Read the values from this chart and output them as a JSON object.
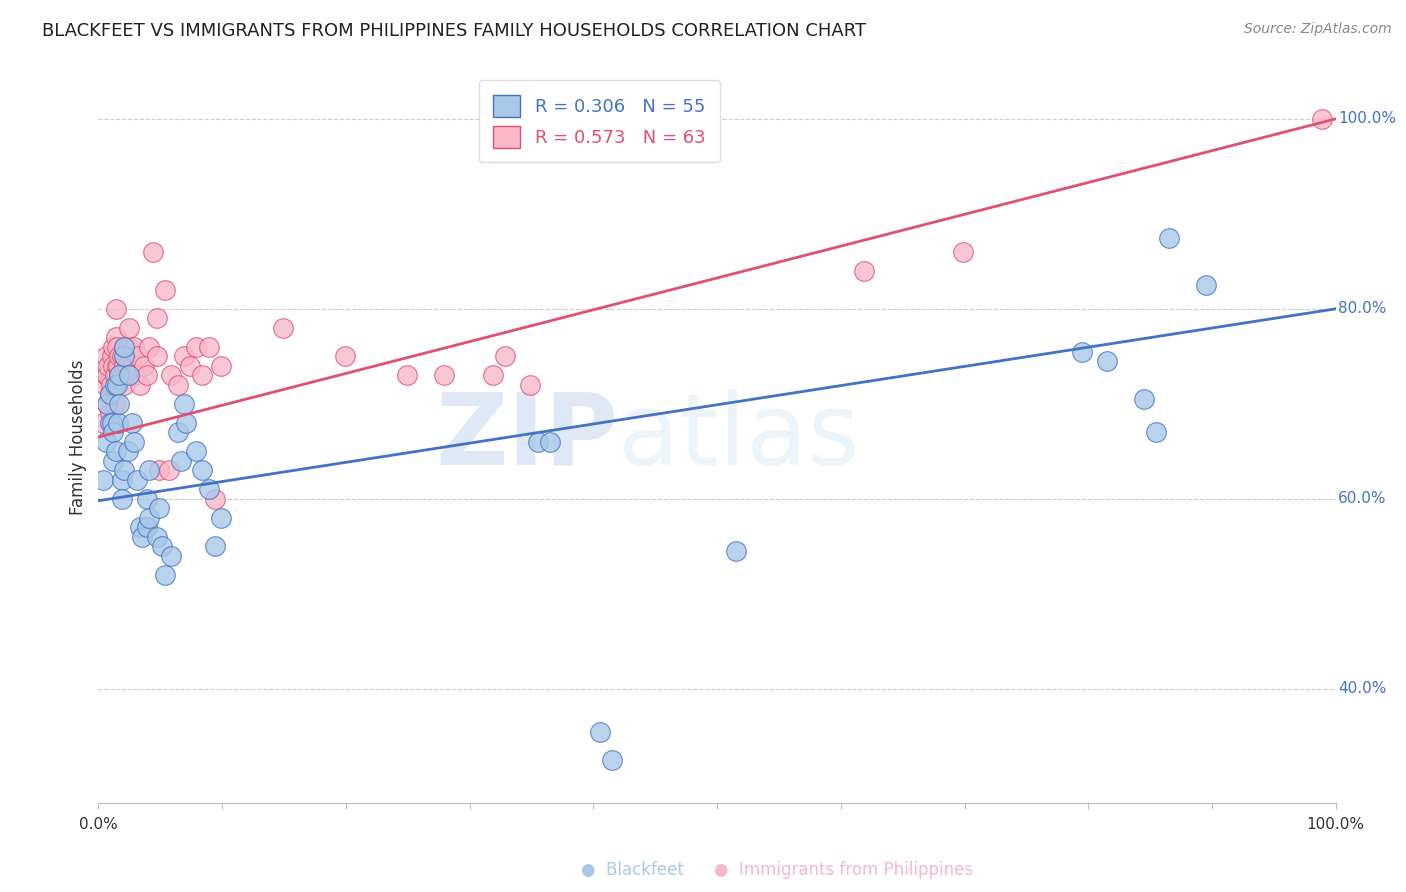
{
  "title": "BLACKFEET VS IMMIGRANTS FROM PHILIPPINES FAMILY HOUSEHOLDS CORRELATION CHART",
  "source": "Source: ZipAtlas.com",
  "ylabel": "Family Households",
  "ytick_labels": [
    "40.0%",
    "60.0%",
    "80.0%",
    "100.0%"
  ],
  "ytick_values": [
    0.4,
    0.6,
    0.8,
    1.0
  ],
  "xlim": [
    0.0,
    1.0
  ],
  "ylim": [
    0.28,
    1.05
  ],
  "blue_color": "#a8c8e8",
  "pink_color": "#f8b8c8",
  "blue_line_color": "#4472c4",
  "pink_line_color": "#e05070",
  "blue_scatter": [
    [
      0.004,
      0.62
    ],
    [
      0.006,
      0.66
    ],
    [
      0.007,
      0.7
    ],
    [
      0.009,
      0.71
    ],
    [
      0.009,
      0.68
    ],
    [
      0.011,
      0.68
    ],
    [
      0.012,
      0.64
    ],
    [
      0.012,
      0.67
    ],
    [
      0.013,
      0.72
    ],
    [
      0.014,
      0.65
    ],
    [
      0.015,
      0.72
    ],
    [
      0.016,
      0.68
    ],
    [
      0.017,
      0.7
    ],
    [
      0.017,
      0.73
    ],
    [
      0.019,
      0.62
    ],
    [
      0.019,
      0.6
    ],
    [
      0.021,
      0.63
    ],
    [
      0.021,
      0.75
    ],
    [
      0.021,
      0.76
    ],
    [
      0.024,
      0.65
    ],
    [
      0.025,
      0.73
    ],
    [
      0.027,
      0.68
    ],
    [
      0.029,
      0.66
    ],
    [
      0.031,
      0.62
    ],
    [
      0.034,
      0.57
    ],
    [
      0.035,
      0.56
    ],
    [
      0.039,
      0.6
    ],
    [
      0.039,
      0.57
    ],
    [
      0.041,
      0.63
    ],
    [
      0.041,
      0.58
    ],
    [
      0.047,
      0.56
    ],
    [
      0.049,
      0.59
    ],
    [
      0.051,
      0.55
    ],
    [
      0.054,
      0.52
    ],
    [
      0.059,
      0.54
    ],
    [
      0.064,
      0.67
    ],
    [
      0.067,
      0.64
    ],
    [
      0.069,
      0.7
    ],
    [
      0.071,
      0.68
    ],
    [
      0.079,
      0.65
    ],
    [
      0.084,
      0.63
    ],
    [
      0.089,
      0.61
    ],
    [
      0.094,
      0.55
    ],
    [
      0.099,
      0.58
    ],
    [
      0.355,
      0.66
    ],
    [
      0.365,
      0.66
    ],
    [
      0.405,
      0.355
    ],
    [
      0.415,
      0.325
    ],
    [
      0.515,
      0.545
    ],
    [
      0.795,
      0.755
    ],
    [
      0.815,
      0.745
    ],
    [
      0.845,
      0.705
    ],
    [
      0.855,
      0.67
    ],
    [
      0.865,
      0.875
    ],
    [
      0.895,
      0.825
    ]
  ],
  "pink_scatter": [
    [
      0.004,
      0.68
    ],
    [
      0.005,
      0.72
    ],
    [
      0.006,
      0.73
    ],
    [
      0.006,
      0.75
    ],
    [
      0.007,
      0.7
    ],
    [
      0.007,
      0.73
    ],
    [
      0.008,
      0.74
    ],
    [
      0.009,
      0.69
    ],
    [
      0.009,
      0.71
    ],
    [
      0.01,
      0.72
    ],
    [
      0.011,
      0.75
    ],
    [
      0.012,
      0.74
    ],
    [
      0.012,
      0.76
    ],
    [
      0.013,
      0.7
    ],
    [
      0.013,
      0.73
    ],
    [
      0.014,
      0.77
    ],
    [
      0.014,
      0.8
    ],
    [
      0.015,
      0.74
    ],
    [
      0.015,
      0.76
    ],
    [
      0.016,
      0.74
    ],
    [
      0.017,
      0.75
    ],
    [
      0.017,
      0.73
    ],
    [
      0.019,
      0.75
    ],
    [
      0.019,
      0.73
    ],
    [
      0.021,
      0.76
    ],
    [
      0.021,
      0.74
    ],
    [
      0.021,
      0.72
    ],
    [
      0.023,
      0.74
    ],
    [
      0.024,
      0.76
    ],
    [
      0.025,
      0.78
    ],
    [
      0.027,
      0.74
    ],
    [
      0.029,
      0.76
    ],
    [
      0.029,
      0.73
    ],
    [
      0.032,
      0.75
    ],
    [
      0.034,
      0.72
    ],
    [
      0.037,
      0.74
    ],
    [
      0.039,
      0.73
    ],
    [
      0.041,
      0.76
    ],
    [
      0.044,
      0.86
    ],
    [
      0.047,
      0.75
    ],
    [
      0.047,
      0.79
    ],
    [
      0.049,
      0.63
    ],
    [
      0.054,
      0.82
    ],
    [
      0.057,
      0.63
    ],
    [
      0.059,
      0.73
    ],
    [
      0.064,
      0.72
    ],
    [
      0.069,
      0.75
    ],
    [
      0.074,
      0.74
    ],
    [
      0.079,
      0.76
    ],
    [
      0.084,
      0.73
    ],
    [
      0.089,
      0.76
    ],
    [
      0.094,
      0.6
    ],
    [
      0.099,
      0.74
    ],
    [
      0.149,
      0.78
    ],
    [
      0.199,
      0.75
    ],
    [
      0.249,
      0.73
    ],
    [
      0.279,
      0.73
    ],
    [
      0.319,
      0.73
    ],
    [
      0.329,
      0.75
    ],
    [
      0.349,
      0.72
    ],
    [
      0.619,
      0.84
    ],
    [
      0.699,
      0.86
    ],
    [
      0.989,
      1.0
    ]
  ],
  "blue_line_x": [
    0.0,
    1.0
  ],
  "blue_line_y_start": 0.598,
  "blue_line_y_end": 0.8,
  "pink_line_x": [
    0.0,
    1.0
  ],
  "pink_line_y_start": 0.665,
  "pink_line_y_end": 1.0,
  "legend_blue_label": "R = 0.306   N = 55",
  "legend_pink_label": "R = 0.573   N = 63",
  "watermark_zip": "ZIP",
  "watermark_atlas": "atlas",
  "background_color": "#ffffff",
  "grid_color": "#cccccc",
  "title_fontsize": 13,
  "axis_label_fontsize": 12,
  "tick_fontsize": 11,
  "source_fontsize": 10,
  "bottom_label_blue": "Blackfeet",
  "bottom_label_pink": "Immigrants from Philippines"
}
